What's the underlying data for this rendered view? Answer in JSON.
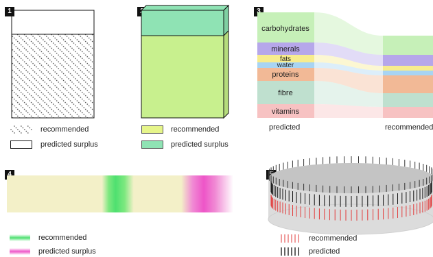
{
  "panels": [
    {
      "badge": "1",
      "legend": {
        "recommended": "recommended",
        "surplus": "predicted surplus"
      }
    },
    {
      "badge": "2",
      "legend": {
        "recommended": "recommended",
        "surplus": "predicted surplus"
      }
    },
    {
      "badge": "3",
      "axis_left": "predicted",
      "axis_right": "recommended",
      "categories": [
        "carbohydrates",
        "minerals",
        "fats",
        "water",
        "proteins",
        "fibre",
        "vitamins"
      ]
    },
    {
      "badge": "4",
      "legend": {
        "recommended": "recommended",
        "surplus": "predicted surplus"
      }
    },
    {
      "badge": "5",
      "legend": {
        "recommended": "recommended",
        "predicted": "predicted"
      }
    }
  ],
  "colors": {
    "carbohydrates": "#c6f0b8",
    "minerals": "#b6a7ea",
    "fats": "#f7ec8e",
    "water": "#a8d4f3",
    "proteins": "#f2b996",
    "fibre": "#bfe0cf",
    "vitamins": "#f7c2c2",
    "fill_green": "#c8f08e",
    "surplus_green": "#8fe3b4",
    "grad_green": "#4ee070",
    "grad_pink": "#ee55c8",
    "bar_bg": "#f3f0c8",
    "tick_red": "#e23a3a"
  }
}
